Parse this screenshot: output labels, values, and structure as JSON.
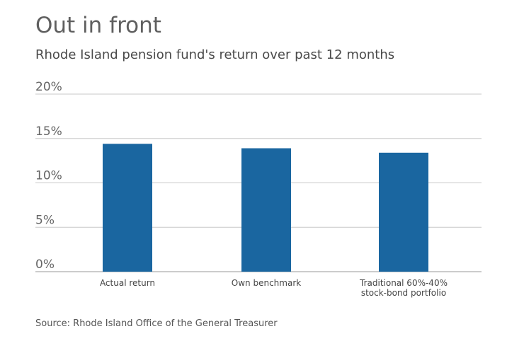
{
  "chart_data": {
    "type": "bar",
    "title": "Out in front",
    "subtitle": "Rhode Island pension fund's return over past 12 months",
    "categories": [
      [
        "Actual return"
      ],
      [
        "Own benchmark"
      ],
      [
        "Traditional 60%-40%",
        "stock-bond portfolio"
      ]
    ],
    "values": [
      14.4,
      13.9,
      13.4
    ],
    "unit": "%",
    "ylim": [
      0,
      20
    ],
    "yticks": [
      "0%",
      "5%",
      "10%",
      "15%",
      "20%"
    ],
    "ytick_values": [
      0,
      5,
      10,
      15,
      20
    ],
    "xlabel": "",
    "ylabel": "",
    "grid": true,
    "bar_color": "#1a66a0",
    "grid_color": "#c8c8c8",
    "source": "Source: Rhode Island Office of the General Treasurer"
  }
}
